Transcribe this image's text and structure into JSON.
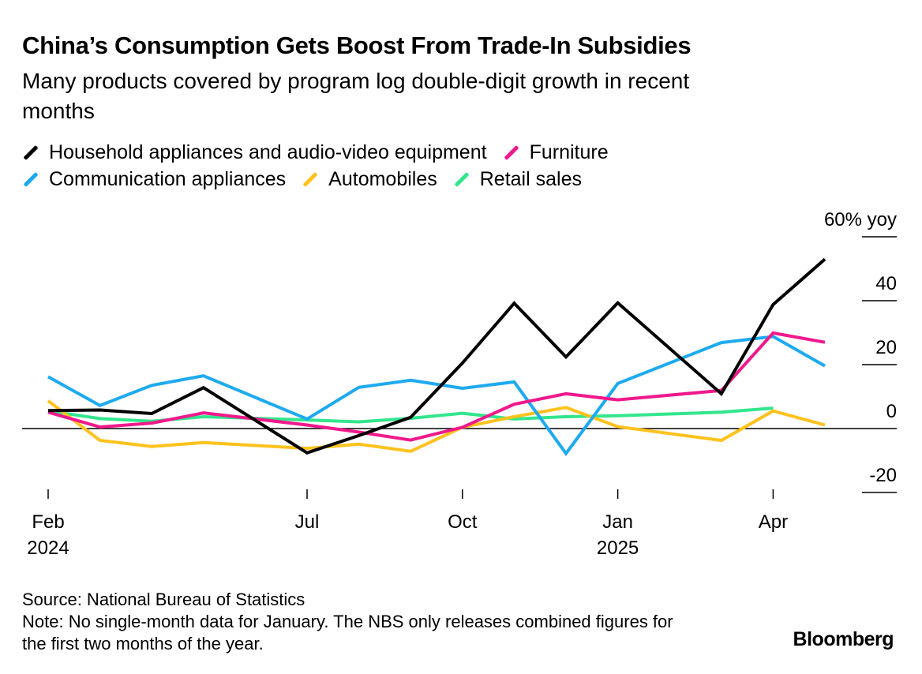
{
  "header": {
    "title": "China’s Consumption Gets Boost From Trade-In Subsidies",
    "subtitle": "Many products covered by program log double-digit growth in recent months"
  },
  "legend_rows": [
    [
      0,
      1
    ],
    [
      2,
      3,
      4
    ]
  ],
  "chart_data": {
    "type": "line",
    "x": [
      "2024-02",
      "2024-03",
      "2024-04",
      "2024-05",
      "2024-06",
      "2024-07",
      "2024-08",
      "2024-09",
      "2024-10",
      "2024-11",
      "2024-12",
      "2025-01",
      "2025-02",
      "2025-03",
      "2025-04",
      "2025-05",
      "2025-06"
    ],
    "series": [
      {
        "name": "Household appliances and audio-video equipment",
        "color": "#000000",
        "values": [
          5.6,
          5.8,
          4.7,
          12.8,
          null,
          -7.6,
          -2.2,
          3.5,
          20.5,
          39.2,
          22.4,
          39.3,
          null,
          10.9,
          38.8,
          53.0,
          null
        ]
      },
      {
        "name": "Furniture",
        "color": "#f0198c",
        "values": [
          5.1,
          0.5,
          1.7,
          4.9,
          null,
          1.1,
          -1.1,
          -3.6,
          0.4,
          7.6,
          10.9,
          9.0,
          null,
          11.9,
          29.9,
          27.0,
          null
        ]
      },
      {
        "name": "Communication appliances",
        "color": "#1eaaf0",
        "values": [
          16.2,
          7.2,
          13.5,
          16.5,
          null,
          3.0,
          12.9,
          15.1,
          12.6,
          14.6,
          -7.8,
          14.1,
          null,
          26.9,
          28.8,
          19.6,
          null
        ]
      },
      {
        "name": "Automobiles",
        "color": "#ffc21e",
        "values": [
          8.7,
          -3.7,
          -5.6,
          -4.4,
          null,
          -6.2,
          -4.9,
          -7.1,
          0.4,
          3.7,
          6.6,
          0.6,
          null,
          -3.7,
          5.5,
          1.1,
          null
        ]
      },
      {
        "name": "Retail sales",
        "color": "#32e68c",
        "values": [
          5.5,
          3.1,
          2.3,
          3.7,
          null,
          2.7,
          2.1,
          3.2,
          4.8,
          3.0,
          3.7,
          4.0,
          null,
          5.1,
          6.4,
          null,
          null
        ]
      }
    ],
    "x_ticks": [
      {
        "label": "Feb",
        "sub": "2024"
      },
      {
        "label": "Jul",
        "sub": ""
      },
      {
        "label": "Oct",
        "sub": ""
      },
      {
        "label": "Jan",
        "sub": "2025"
      },
      {
        "label": "Apr",
        "sub": ""
      }
    ],
    "y_ticks": [
      "60% yoy",
      "40",
      "20",
      "0",
      "-20"
    ],
    "y_tick_values": [
      60,
      40,
      20,
      0,
      -20
    ],
    "ylim": [
      -20,
      60
    ],
    "grid": false,
    "legend_position": "top"
  },
  "footer": {
    "source": "Source: National Bureau of Statistics",
    "note": "Note: No single-month data for January. The NBS only releases combined figures for the first two months of the year."
  },
  "brand": "Bloomberg"
}
